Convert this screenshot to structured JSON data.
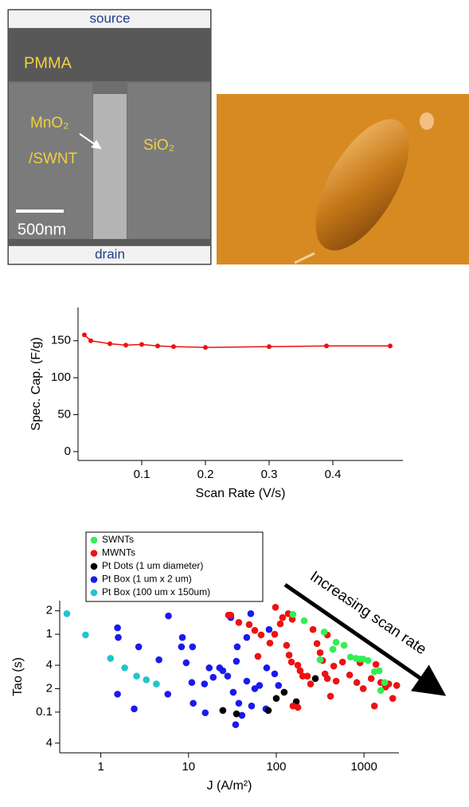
{
  "figure_images": {
    "sem": {
      "top_label": "source",
      "bottom_label": "drain",
      "material_labels": [
        "PMMA",
        "MnO₂",
        "/SWNT",
        "SiO₂"
      ],
      "scale_bar": "500nm"
    }
  },
  "chart_data": [
    {
      "type": "line",
      "xlabel": "Scan Rate (V/s)",
      "ylabel": "Spec. Cap. (F/g)",
      "x": [
        0.01,
        0.02,
        0.05,
        0.075,
        0.1,
        0.125,
        0.15,
        0.2,
        0.3,
        0.39,
        0.49
      ],
      "values": [
        158,
        150,
        146,
        144,
        145,
        143,
        142,
        141,
        142,
        143,
        143
      ],
      "color": "#ee1111",
      "xlim": [
        0,
        0.51
      ],
      "ylim": [
        -12,
        195
      ],
      "xticks": [
        0.1,
        0.2,
        0.3,
        0.4
      ],
      "yticks": [
        0,
        50,
        100,
        150
      ],
      "grid": false
    },
    {
      "type": "scatter",
      "xlabel": "J (A/m²)",
      "ylabel": "Tao (s)",
      "xscale": "log",
      "yscale": "log",
      "xlim": [
        0.34,
        2500
      ],
      "ylim": [
        0.03,
        2.7
      ],
      "xticks": [
        1,
        10,
        100,
        1000
      ],
      "yticks": [
        {
          "value": 0.04,
          "label": "4"
        },
        0.1,
        {
          "value": 0.2,
          "label": "2"
        },
        {
          "value": 0.4,
          "label": "4"
        },
        1,
        2
      ],
      "grid": false,
      "legend": "upper left",
      "annotation": "Increasing scan rate",
      "series": [
        {
          "name": "SWNTs",
          "color": "#33ee55",
          "x": [
            155,
            208,
            351,
            481,
            593,
            316,
            700,
            811,
            901,
            979,
            1110,
            1313,
            1489,
            1722,
            1552,
            442
          ],
          "values": [
            1.8,
            1.49,
            1.07,
            0.79,
            0.72,
            0.47,
            0.51,
            0.49,
            0.48,
            0.48,
            0.46,
            0.33,
            0.34,
            0.24,
            0.19,
            0.64
          ]
        },
        {
          "name": "MWNTs",
          "color": "#ee1111",
          "x": [
            28.5,
            30.3,
            37.4,
            49.1,
            56.9,
            67.2,
            84.6,
            95.9,
            97.9,
            111,
            118,
            137,
            131,
            140,
            149,
            176,
            187,
            200,
            226,
            246,
            262,
            291,
            316,
            337,
            359,
            382,
            452,
            481,
            569,
            686,
            828,
            901,
            979,
            1208,
            1368,
            1552,
            1759,
            1914,
            2125,
            2359,
            1313,
            155,
            176,
            415,
            61.8,
            152,
            382
          ],
          "values": [
            1.76,
            1.76,
            1.42,
            1.33,
            1.12,
            0.98,
            0.77,
            1.0,
            2.22,
            1.36,
            1.64,
            1.84,
            0.72,
            0.54,
            0.44,
            0.4,
            0.34,
            0.29,
            0.29,
            0.23,
            1.15,
            0.76,
            0.58,
            0.46,
            0.31,
            0.27,
            0.39,
            0.25,
            0.44,
            0.3,
            0.24,
            0.43,
            0.2,
            0.27,
            0.41,
            0.24,
            0.21,
            0.23,
            0.15,
            0.22,
            0.12,
            0.12,
            0.115,
            0.16,
            0.52,
            1.56,
            0.98
          ]
        },
        {
          "name": "Pt Dots (1 um diameter)",
          "color": "#000000",
          "x": [
            24.6,
            35.2,
            81.1,
            100,
            123,
            169,
            279
          ],
          "values": [
            0.105,
            0.095,
            0.105,
            0.15,
            0.18,
            0.136,
            0.27
          ]
        },
        {
          "name": "Pt Box (1 um x 2 um)",
          "color": "#1a1aee",
          "x": [
            1.55,
            1.58,
            2.7,
            5.9,
            4.6,
            8.3,
            9.4,
            11.1,
            10.9,
            15.2,
            17.2,
            19.1,
            1.55,
            2.4,
            5.8,
            11.3,
            15.5,
            22.6,
            27.9,
            32.3,
            35.1,
            35.9,
            37.4,
            40.6,
            46.1,
            52.3,
            56.9,
            64.4,
            76.2,
            77.8,
            95.9,
            106,
            82.8,
            51.2,
            30.3,
            46.1,
            34.4,
            24.6,
            8.5
          ],
          "values": [
            1.21,
            0.91,
            0.69,
            1.72,
            0.47,
            0.69,
            0.43,
            0.69,
            0.24,
            0.23,
            0.37,
            0.28,
            0.17,
            0.11,
            0.17,
            0.13,
            0.098,
            0.37,
            0.29,
            0.18,
            0.45,
            0.69,
            0.13,
            0.091,
            0.25,
            0.12,
            0.2,
            0.22,
            0.11,
            0.37,
            0.31,
            0.22,
            1.15,
            1.84,
            1.64,
            0.91,
            0.069,
            0.34,
            0.91
          ]
        },
        {
          "name": "Pt Box (100 um x 150um)",
          "color": "#22c4cc",
          "x": [
            0.41,
            0.67,
            1.29,
            1.87,
            2.56,
            3.3,
            4.3
          ],
          "values": [
            1.84,
            0.98,
            0.49,
            0.37,
            0.29,
            0.26,
            0.23
          ]
        }
      ]
    }
  ]
}
